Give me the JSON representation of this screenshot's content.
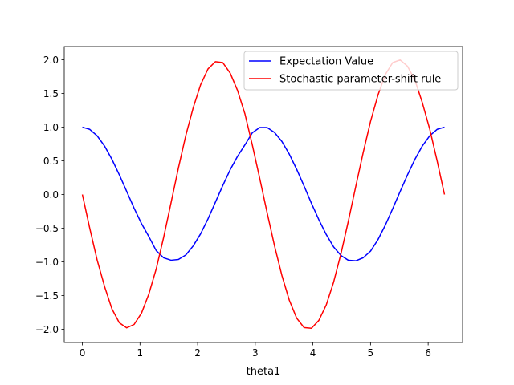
{
  "chart_data": {
    "type": "line",
    "title": "",
    "xlabel": "theta1",
    "ylabel": "",
    "xlim": [
      -0.3141592653589793,
      6.5973445725385655
    ],
    "ylim": [
      -2.1974,
      2.1974
    ],
    "xticks": [
      0,
      1,
      2,
      3,
      4,
      5,
      6
    ],
    "xtick_labels": [
      "0",
      "1",
      "2",
      "3",
      "4",
      "5",
      "6"
    ],
    "yticks": [
      -2.0,
      -1.5,
      -1.0,
      -0.5,
      0.0,
      0.5,
      1.0,
      1.5,
      2.0
    ],
    "ytick_labels": [
      "−2.0",
      "−1.5",
      "−1.0",
      "−0.5",
      "0.0",
      "0.5",
      "1.0",
      "1.5",
      "2.0"
    ],
    "grid": false,
    "legend_position": "top-right",
    "x": [
      0.0,
      0.1282,
      0.2565,
      0.3847,
      0.5129,
      0.6411,
      0.7694,
      0.8976,
      1.0258,
      1.154,
      1.2823,
      1.4105,
      1.5387,
      1.6669,
      1.7952,
      1.9234,
      2.0516,
      2.1799,
      2.3081,
      2.4363,
      2.5645,
      2.6928,
      2.821,
      2.9492,
      3.0774,
      3.2057,
      3.3339,
      3.4621,
      3.5903,
      3.7186,
      3.8468,
      3.975,
      4.1033,
      4.2315,
      4.3597,
      4.4879,
      4.6162,
      4.7444,
      4.8726,
      5.0008,
      5.1291,
      5.2573,
      5.3855,
      5.5137,
      5.642,
      5.7702,
      5.8984,
      6.0267,
      6.1549,
      6.2832
    ],
    "series": [
      {
        "name": "Expectation Value",
        "color": "#0000ff",
        "values": [
          1.0,
          0.9675,
          0.8721,
          0.7203,
          0.5225,
          0.2923,
          0.0448,
          -0.2029,
          -0.4317,
          -0.6258,
          -0.8346,
          -0.9397,
          -0.9759,
          -0.9648,
          -0.8976,
          -0.7631,
          -0.5843,
          -0.3622,
          -0.1154,
          0.1331,
          0.3673,
          0.5673,
          0.7373,
          0.9167,
          0.9947,
          0.9951,
          0.9216,
          0.7872,
          0.5997,
          0.3738,
          0.1257,
          -0.1312,
          -0.3741,
          -0.5944,
          -0.7781,
          -0.9061,
          -0.9773,
          -0.9845,
          -0.9395,
          -0.8402,
          -0.6702,
          -0.4541,
          -0.2092,
          0.0448,
          0.2923,
          0.5225,
          0.7203,
          0.8721,
          0.9675,
          1.0
        ]
      },
      {
        "name": "Stochastic parameter-shift rule",
        "color": "#ff0000",
        "values": [
          0.0,
          -0.5029,
          -0.9729,
          -1.3648,
          -1.6983,
          -1.9045,
          -1.9798,
          -1.9294,
          -1.7617,
          -1.4771,
          -1.1027,
          -0.6361,
          -0.1228,
          0.3952,
          0.8773,
          1.2884,
          1.6296,
          1.8643,
          1.9727,
          1.9588,
          1.8036,
          1.5445,
          1.1969,
          0.7352,
          0.2396,
          -0.2702,
          -0.7609,
          -1.2028,
          -1.5689,
          -1.8364,
          -1.9757,
          -1.9866,
          -1.8691,
          -1.6398,
          -1.3007,
          -0.8762,
          -0.3911,
          0.1224,
          0.6228,
          1.0871,
          1.4769,
          1.7836,
          1.9591,
          1.9986,
          1.9045,
          1.6983,
          1.3648,
          0.9729,
          0.5029,
          0.0
        ]
      }
    ]
  }
}
